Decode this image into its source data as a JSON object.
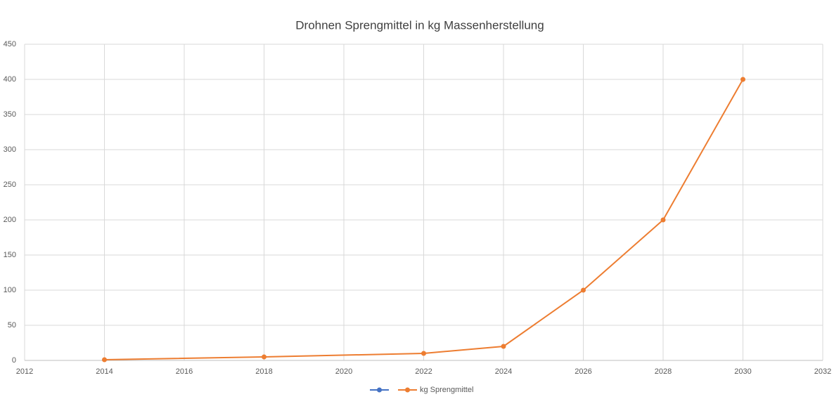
{
  "chart_data": {
    "type": "line",
    "title": "Drohnen Sprengmittel in kg Massenherstellung",
    "x": [
      2014,
      2018,
      2022,
      2024,
      2026,
      2028,
      2030
    ],
    "series": [
      {
        "name": null,
        "color": "#4472c4",
        "values": [
          null,
          null,
          null,
          null,
          null,
          null,
          null
        ]
      },
      {
        "name": "kg Sprengmittel",
        "color": "#ed7d31",
        "values": [
          1,
          5,
          10,
          20,
          100,
          200,
          400
        ]
      }
    ],
    "xlim": [
      2012,
      2032
    ],
    "xticks": [
      2012,
      2014,
      2016,
      2018,
      2020,
      2022,
      2024,
      2026,
      2028,
      2030,
      2032
    ],
    "ylim": [
      0,
      450
    ],
    "yticks": [
      0,
      50,
      100,
      150,
      200,
      250,
      300,
      350,
      400,
      450
    ],
    "grid": true,
    "legend": "bottom"
  }
}
